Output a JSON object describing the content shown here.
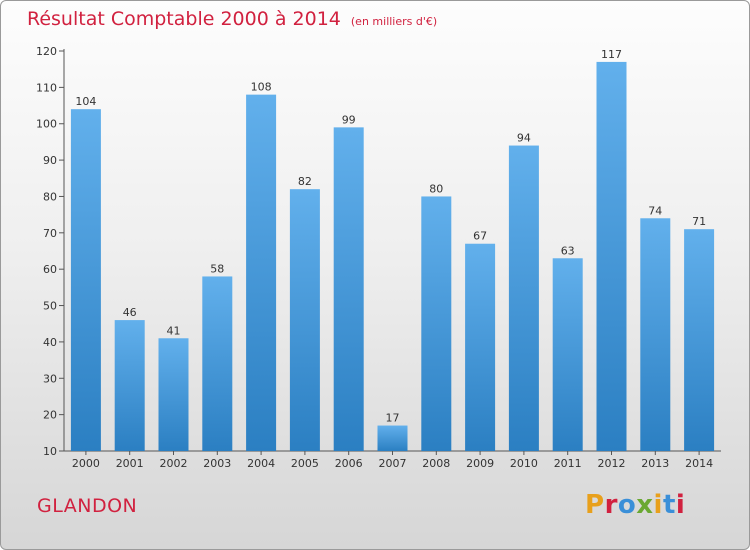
{
  "header": {
    "title": "Résultat Comptable 2000 à 2014",
    "unit_note": "(en milliers d'€)"
  },
  "footer": {
    "town": "GLANDON",
    "logo": "Proxiti",
    "logo_colors": [
      "#e8a01c",
      "#d1213f",
      "#3a8fd8",
      "#6aa832",
      "#e8a01c",
      "#3a8fd8",
      "#d1213f"
    ]
  },
  "colors": {
    "title": "#d1213f",
    "bar_light": "#62b0ec",
    "bar_dark": "#2b7fc2",
    "axis": "#555555",
    "grid": "#cfcfcf"
  },
  "chart_data": {
    "type": "bar",
    "title": "Résultat Comptable 2000 à 2014",
    "subtitle": "(en milliers d'€)",
    "categories": [
      "2000",
      "2001",
      "2002",
      "2003",
      "2004",
      "2005",
      "2006",
      "2007",
      "2008",
      "2009",
      "2010",
      "2011",
      "2012",
      "2013",
      "2014"
    ],
    "values": [
      104,
      46,
      41,
      58,
      108,
      82,
      99,
      17,
      80,
      67,
      94,
      63,
      117,
      74,
      71
    ],
    "ylim": [
      10,
      120
    ],
    "yticks": [
      10,
      20,
      30,
      40,
      50,
      60,
      70,
      80,
      90,
      100,
      110,
      120
    ],
    "grid": false,
    "data_labels": true
  }
}
